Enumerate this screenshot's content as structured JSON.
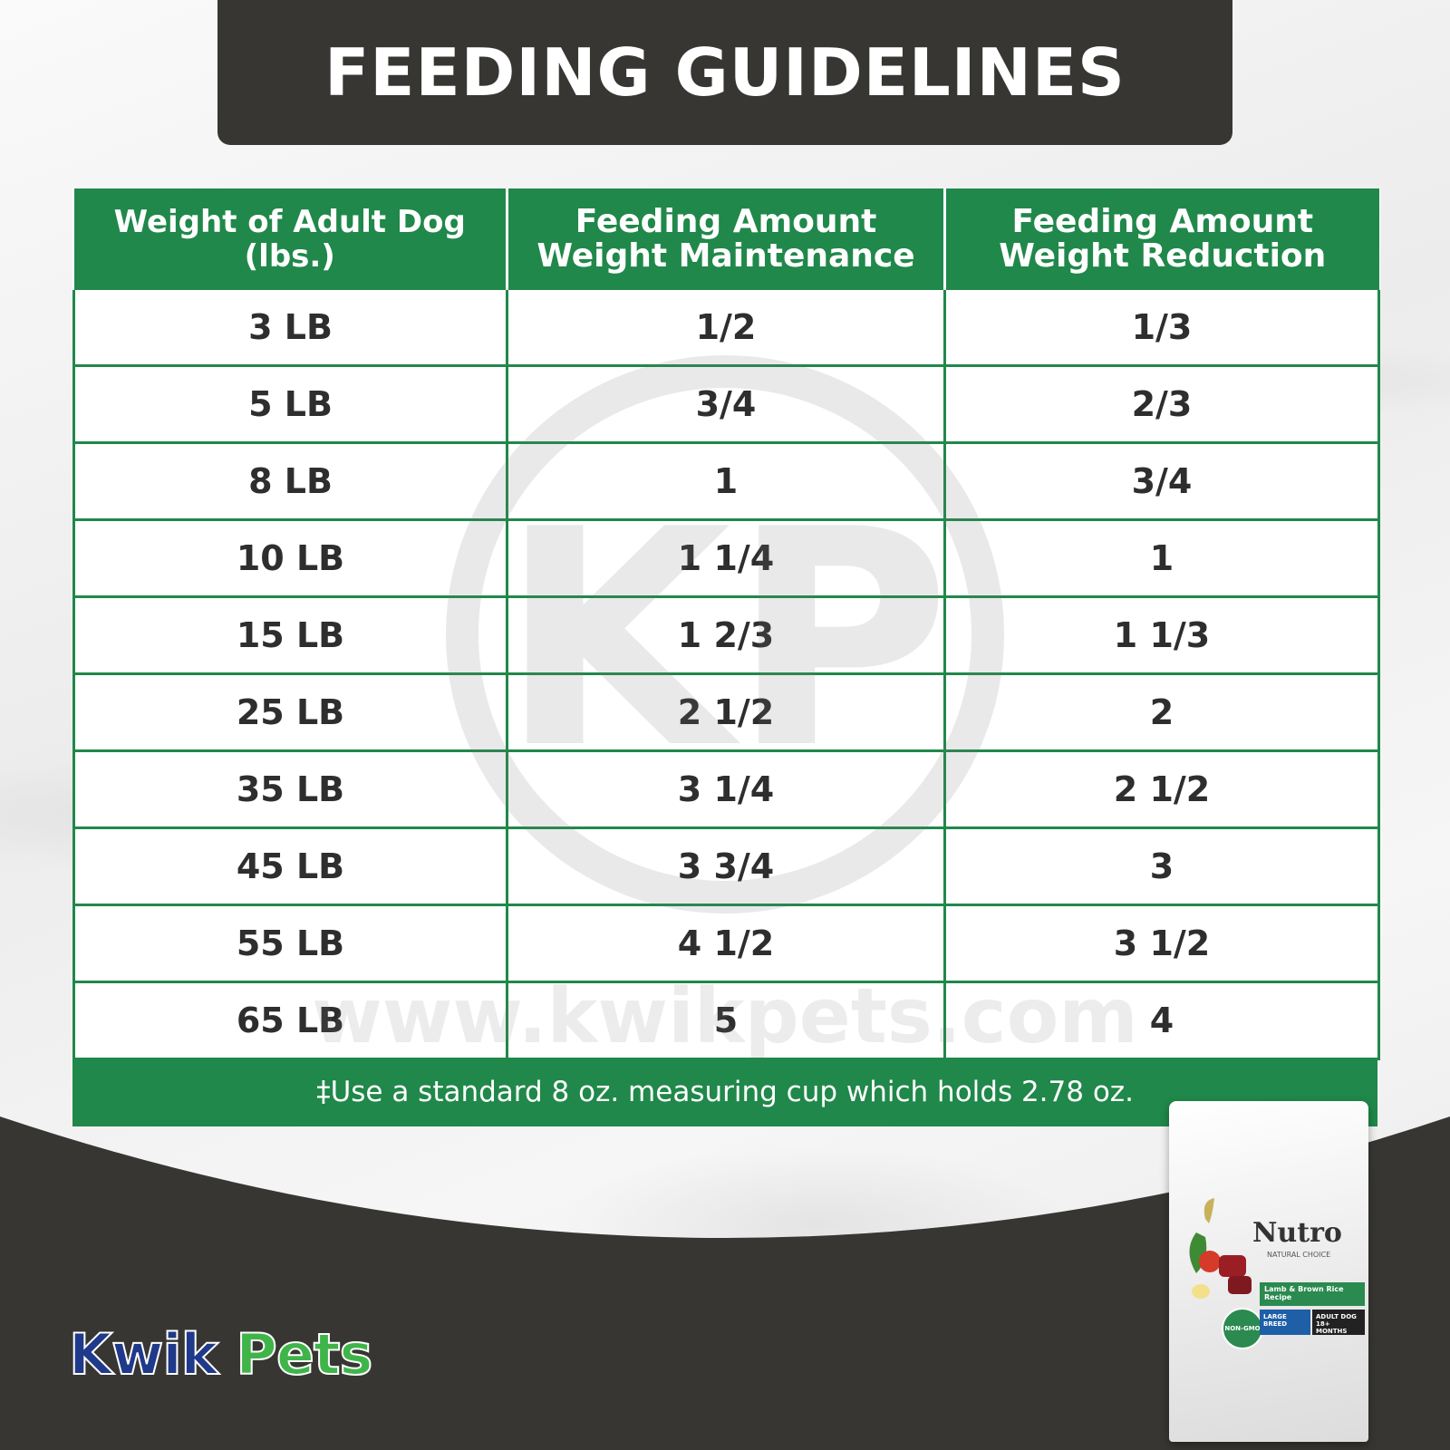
{
  "header": {
    "title": "FEEDING GUIDELINES"
  },
  "table": {
    "columns": [
      "Weight of Adult Dog (lbs.)",
      [
        "Feeding Amount",
        "Weight Maintenance"
      ],
      [
        "Feeding Amount",
        "Weight Reduction"
      ]
    ],
    "rows": [
      [
        "3 LB",
        "1/2",
        "1/3"
      ],
      [
        "5 LB",
        "3/4",
        "2/3"
      ],
      [
        "8 LB",
        "1",
        "3/4"
      ],
      [
        "10 LB",
        "1 1/4",
        "1"
      ],
      [
        "15 LB",
        "1 2/3",
        "1 1/3"
      ],
      [
        "25 LB",
        "2 1/2",
        "2"
      ],
      [
        "35 LB",
        "3 1/4",
        "2 1/2"
      ],
      [
        "45 LB",
        "3 3/4",
        "3"
      ],
      [
        "55 LB",
        "4 1/2",
        "3 1/2"
      ],
      [
        "65 LB",
        "5",
        "4"
      ]
    ],
    "footnote": "‡Use a standard 8 oz. measuring cup which holds 2.78 oz."
  },
  "watermark": {
    "monogram": "KP",
    "url": "www.kwikpets.com"
  },
  "logo": {
    "part1": "Kwik",
    "part2": "Pets"
  },
  "product": {
    "brand": "Nutro",
    "subbrand": "NATURAL CHOICE",
    "recipe": "Lamb & Brown Rice Recipe",
    "breed": "LARGE BREED",
    "age": "ADULT DOG 18+ MONTHS",
    "seal": "NON-GMO"
  },
  "colors": {
    "green": "#20884a",
    "dark": "#383633",
    "logo_blue": "#1f3a8a",
    "logo_green": "#3fb549"
  }
}
